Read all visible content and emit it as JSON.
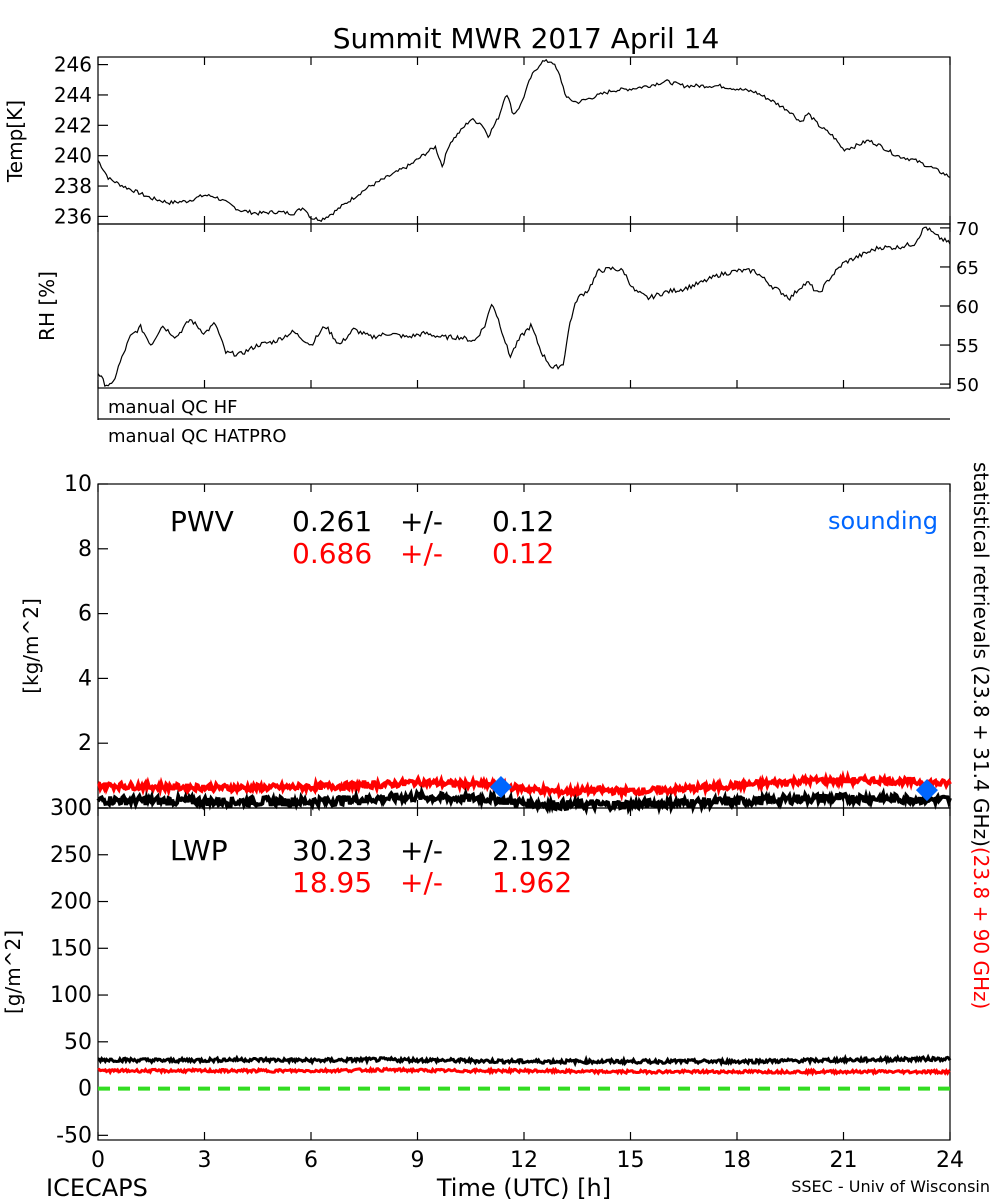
{
  "title": "Summit MWR 2017 April 14",
  "footer": {
    "left": "ICECAPS",
    "center": "Time (UTC) [h]",
    "right": "SSEC - Univ of Wisconsin"
  },
  "side_labels": {
    "black": "statistical retrievals (23.8 + 31.4 GHz)",
    "red": "(23.8 + 90 GHz)"
  },
  "qc": {
    "hf": "manual QC HF",
    "hatpro": "manual QC HATPRO"
  },
  "colors": {
    "black_series": "#000000",
    "red_series": "#ff0000",
    "sounding": "#0066ff",
    "zero_line": "#33dd22"
  },
  "x_ticks": [
    "0",
    "3",
    "6",
    "9",
    "12",
    "15",
    "18",
    "21",
    "24"
  ],
  "chart_data": [
    {
      "type": "line",
      "ylabel": "Temp[K]",
      "xlim": [
        0,
        24
      ],
      "ylim": [
        235.5,
        246.5
      ],
      "yticks": [
        236,
        238,
        240,
        242,
        244,
        246
      ],
      "x": [
        0,
        0.3,
        0.7,
        1,
        1.5,
        2,
        2.5,
        3,
        3.3,
        3.7,
        4,
        4.5,
        5,
        5.5,
        5.8,
        6,
        6.3,
        6.6,
        7,
        7.3,
        7.6,
        8,
        8.4,
        8.8,
        9.2,
        9.5,
        9.7,
        9.9,
        10.2,
        10.5,
        10.8,
        11,
        11.3,
        11.5,
        11.7,
        11.9,
        12.2,
        12.5,
        12.8,
        13,
        13.2,
        13.5,
        14,
        14.5,
        15,
        15.5,
        16,
        16.5,
        17,
        17.5,
        18,
        18.5,
        19,
        19.5,
        19.8,
        20,
        20.3,
        20.7,
        21,
        21.3,
        21.7,
        22,
        22.5,
        23,
        23.5,
        24
      ],
      "series": [
        {
          "values": [
            239.7,
            238.5,
            238.0,
            237.7,
            237.2,
            236.9,
            237.0,
            237.4,
            237.3,
            236.8,
            236.4,
            236.2,
            236.3,
            236.2,
            236.6,
            235.9,
            235.8,
            236.2,
            236.9,
            237.4,
            237.9,
            238.4,
            238.9,
            239.4,
            240.1,
            240.6,
            239.3,
            240.8,
            241.6,
            242.4,
            242.1,
            241.3,
            242.6,
            244.2,
            242.7,
            243.3,
            245.2,
            246.2,
            246.2,
            245.3,
            243.8,
            243.5,
            243.9,
            244.3,
            244.4,
            244.6,
            244.9,
            244.6,
            244.6,
            244.6,
            244.4,
            244.2,
            243.6,
            242.9,
            242.2,
            242.8,
            242.0,
            241.3,
            240.4,
            240.6,
            241.0,
            240.7,
            240.0,
            239.7,
            239.2,
            238.6
          ]
        }
      ]
    },
    {
      "type": "line",
      "ylabel": "RH [%]",
      "xlim": [
        0,
        24
      ],
      "ylim": [
        49.5,
        70.5
      ],
      "yticks": [
        50,
        55,
        60,
        65,
        70
      ],
      "x": [
        0,
        0.2,
        0.4,
        0.6,
        0.9,
        1.2,
        1.5,
        1.8,
        2.2,
        2.6,
        3,
        3.3,
        3.6,
        4,
        4.5,
        5,
        5.5,
        6,
        6.4,
        6.8,
        7.2,
        7.7,
        8.2,
        8.7,
        9.2,
        9.7,
        10.2,
        10.6,
        10.9,
        11.1,
        11.3,
        11.6,
        11.9,
        12.2,
        12.5,
        12.8,
        13.1,
        13.3,
        13.5,
        13.8,
        14.1,
        14.5,
        14.8,
        15.1,
        15.5,
        16,
        16.5,
        17,
        17.5,
        18,
        18.5,
        19,
        19.5,
        19.8,
        20,
        20.3,
        20.6,
        21,
        21.5,
        22,
        22.5,
        23,
        23.3,
        23.6,
        24
      ],
      "series": [
        {
          "values": [
            51.5,
            50.0,
            49.8,
            52.5,
            56.0,
            57.3,
            55.0,
            57.5,
            56.0,
            58.3,
            56.5,
            57.8,
            54.0,
            53.8,
            55.0,
            55.5,
            56.7,
            55.0,
            57.5,
            55.0,
            57.0,
            56.0,
            56.5,
            56.0,
            56.5,
            56.0,
            56.0,
            55.5,
            57.5,
            60.5,
            58.0,
            53.5,
            56.0,
            57.5,
            54.0,
            52.0,
            52.5,
            58.0,
            61.0,
            62.0,
            64.5,
            64.8,
            64.5,
            62.0,
            61.0,
            61.8,
            62.2,
            63.0,
            64.0,
            64.5,
            64.5,
            62.5,
            61.0,
            62.5,
            63.0,
            61.5,
            63.5,
            65.5,
            66.5,
            67.5,
            67.5,
            68.0,
            70.2,
            69.0,
            68.0
          ]
        }
      ]
    },
    {
      "type": "line",
      "ylabel": "[kg/m^2]",
      "title": "PWV",
      "xlim": [
        0,
        24
      ],
      "ylim": [
        0,
        10
      ],
      "yticks": [
        0,
        2,
        4,
        6,
        8,
        10
      ],
      "stats": [
        {
          "mean": "0.261",
          "sep": "+/-",
          "err": "0.12",
          "color": "#000000"
        },
        {
          "mean": "0.686",
          "sep": "+/-",
          "err": "0.12",
          "color": "#ff0000"
        }
      ],
      "legend": "sounding",
      "sounding_points": [
        {
          "x": 11.35,
          "y": 0.65
        },
        {
          "x": 23.35,
          "y": 0.55
        }
      ],
      "x": [
        0,
        2,
        4,
        6,
        8,
        9,
        10,
        11,
        12,
        13,
        14,
        15,
        16,
        18,
        20,
        22,
        24
      ],
      "series": [
        {
          "values": [
            0.25,
            0.22,
            0.2,
            0.2,
            0.3,
            0.35,
            0.3,
            0.3,
            0.15,
            0.1,
            0.1,
            0.1,
            0.15,
            0.2,
            0.3,
            0.3,
            0.25
          ]
        },
        {
          "values": [
            0.7,
            0.65,
            0.62,
            0.65,
            0.72,
            0.8,
            0.75,
            0.72,
            0.6,
            0.5,
            0.55,
            0.52,
            0.55,
            0.7,
            0.85,
            0.85,
            0.75
          ]
        }
      ]
    },
    {
      "type": "line",
      "ylabel": "[g/m^2]",
      "title": "LWP",
      "xlim": [
        0,
        24
      ],
      "ylim": [
        -55,
        300
      ],
      "yticks": [
        -50,
        0,
        50,
        100,
        150,
        200,
        250,
        300
      ],
      "stats": [
        {
          "mean": "30.23",
          "sep": "+/-",
          "err": "2.192",
          "color": "#000000"
        },
        {
          "mean": "18.95",
          "sep": "+/-",
          "err": "1.962",
          "color": "#ff0000"
        }
      ],
      "zero_line": 0,
      "x": [
        0,
        2,
        4,
        6,
        8,
        10,
        12,
        14,
        16,
        18,
        20,
        22,
        24
      ],
      "series": [
        {
          "values": [
            31,
            30,
            31,
            30,
            31,
            30,
            29,
            29,
            29,
            29,
            30,
            31,
            32
          ]
        },
        {
          "values": [
            19,
            19,
            19,
            19,
            20,
            19,
            19,
            18,
            18,
            18,
            18,
            18,
            18
          ]
        }
      ]
    }
  ]
}
